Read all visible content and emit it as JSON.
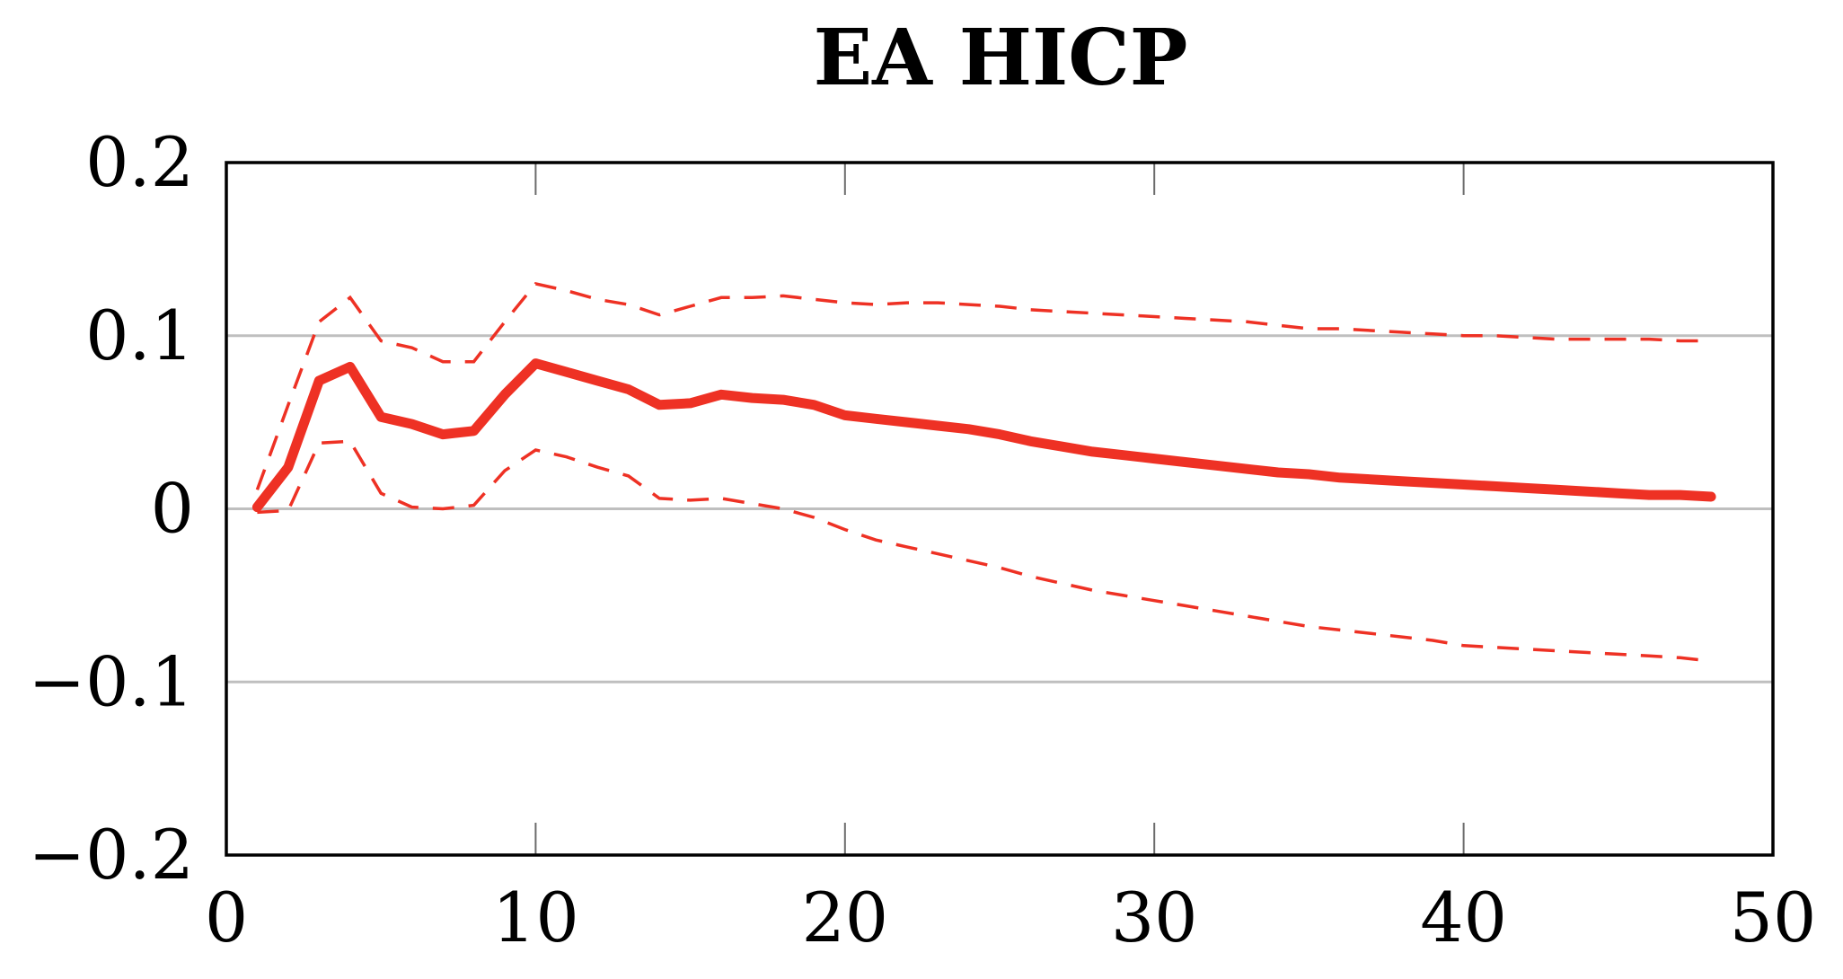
{
  "chart_data": {
    "type": "line",
    "title": "EA HICP",
    "xlabel": "",
    "ylabel": "",
    "xlim": [
      0,
      50
    ],
    "ylim": [
      -0.2,
      0.2
    ],
    "x_ticks": [
      0,
      10,
      20,
      30,
      40,
      50
    ],
    "x_tick_labels": [
      "0",
      "10",
      "20",
      "30",
      "40",
      "50"
    ],
    "y_ticks": [
      -0.2,
      -0.1,
      0,
      0.1,
      0.2
    ],
    "y_tick_labels": [
      "−0.2",
      "−0.1",
      "0",
      "0.1",
      "0.2"
    ],
    "grid": "horizontal",
    "legend": "none",
    "x": [
      1,
      2,
      3,
      4,
      5,
      6,
      7,
      8,
      9,
      10,
      11,
      12,
      13,
      14,
      15,
      16,
      17,
      18,
      19,
      20,
      21,
      22,
      23,
      24,
      25,
      26,
      27,
      28,
      29,
      30,
      31,
      32,
      33,
      34,
      35,
      36,
      37,
      38,
      39,
      40,
      41,
      42,
      43,
      44,
      45,
      46,
      47,
      48
    ],
    "series": [
      {
        "role": "estimate",
        "style": "solid",
        "color": "#ee3124",
        "values": [
          0.001,
          0.024,
          0.074,
          0.082,
          0.053,
          0.049,
          0.043,
          0.045,
          0.066,
          0.084,
          0.079,
          0.074,
          0.069,
          0.06,
          0.061,
          0.066,
          0.064,
          0.063,
          0.06,
          0.054,
          0.052,
          0.05,
          0.048,
          0.046,
          0.043,
          0.039,
          0.036,
          0.033,
          0.031,
          0.029,
          0.027,
          0.025,
          0.023,
          0.021,
          0.02,
          0.018,
          0.017,
          0.016,
          0.015,
          0.014,
          0.013,
          0.012,
          0.011,
          0.01,
          0.009,
          0.008,
          0.008,
          0.007
        ]
      },
      {
        "role": "upper_band",
        "style": "dashed",
        "color": "#ee3124",
        "values": [
          0.011,
          0.06,
          0.108,
          0.122,
          0.097,
          0.093,
          0.085,
          0.085,
          0.108,
          0.13,
          0.126,
          0.121,
          0.118,
          0.112,
          0.117,
          0.122,
          0.122,
          0.123,
          0.121,
          0.119,
          0.118,
          0.119,
          0.119,
          0.118,
          0.117,
          0.115,
          0.114,
          0.113,
          0.112,
          0.111,
          0.11,
          0.109,
          0.108,
          0.106,
          0.104,
          0.104,
          0.103,
          0.102,
          0.101,
          0.1,
          0.1,
          0.099,
          0.098,
          0.098,
          0.098,
          0.098,
          0.097,
          0.097
        ]
      },
      {
        "role": "lower_band",
        "style": "dashed",
        "color": "#ee3124",
        "values": [
          -0.002,
          -0.001,
          0.038,
          0.039,
          0.009,
          0.001,
          0.0,
          0.002,
          0.022,
          0.034,
          0.03,
          0.024,
          0.019,
          0.006,
          0.005,
          0.006,
          0.003,
          0.0,
          -0.005,
          -0.012,
          -0.018,
          -0.022,
          -0.026,
          -0.03,
          -0.034,
          -0.039,
          -0.043,
          -0.047,
          -0.05,
          -0.053,
          -0.056,
          -0.059,
          -0.062,
          -0.065,
          -0.068,
          -0.07,
          -0.072,
          -0.074,
          -0.076,
          -0.079,
          -0.08,
          -0.081,
          -0.082,
          -0.083,
          -0.084,
          -0.085,
          -0.086,
          -0.088
        ]
      }
    ]
  }
}
